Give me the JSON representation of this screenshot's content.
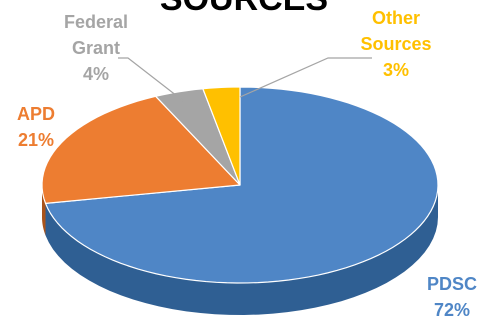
{
  "chart_data": {
    "type": "pie",
    "title": "SOURCES",
    "slices": [
      {
        "name": "PDSC",
        "value": 72,
        "label_pct": "72%",
        "color": "#4f86c6",
        "side_color": "#2f5f93"
      },
      {
        "name": "APD",
        "value": 21,
        "label_pct": "21%",
        "color": "#ed7d31",
        "side_color": "#a9531a"
      },
      {
        "name": "Federal Grant",
        "name_lines": [
          "Federal",
          "Grant"
        ],
        "value": 4,
        "label_pct": "4%",
        "color": "#a5a5a5",
        "side_color": "#6e6e6e"
      },
      {
        "name": "Other Sources",
        "name_lines": [
          "Other",
          "Sources"
        ],
        "value": 3,
        "label_pct": "3%",
        "color": "#ffc000",
        "side_color": "#b88a00"
      }
    ],
    "legend": "none",
    "style": "3d-pie",
    "start": "12 o'clock",
    "direction": "clockwise"
  }
}
